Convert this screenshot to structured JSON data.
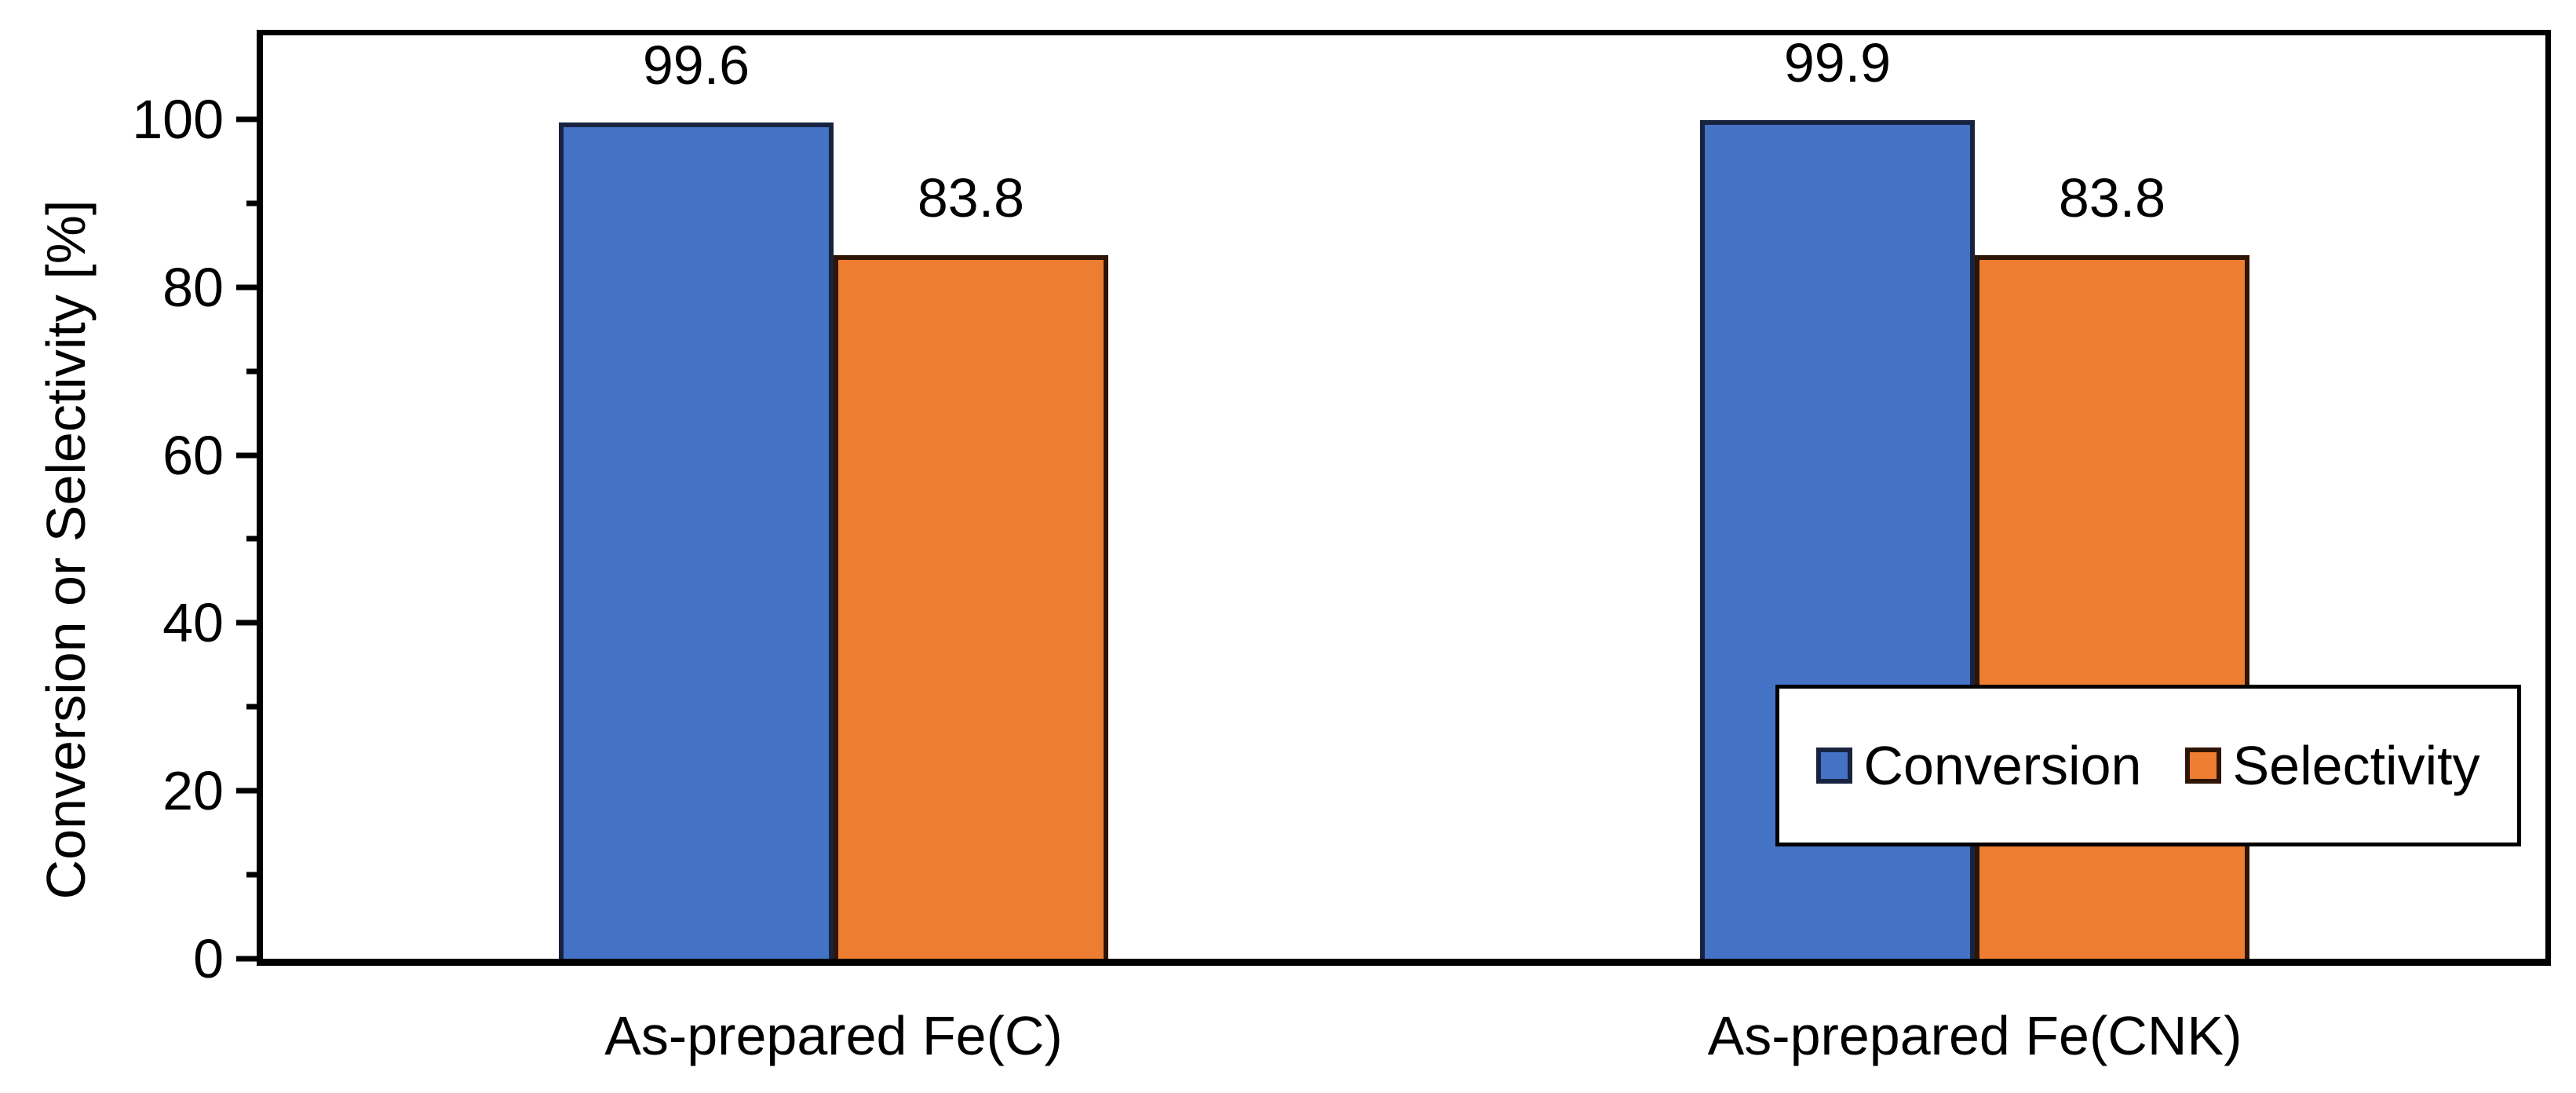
{
  "chart_data": {
    "type": "bar",
    "title": "",
    "categories": [
      "As-prepared Fe(C)",
      "As-prepared Fe(CNK)"
    ],
    "series": [
      {
        "name": "Conversion",
        "color": "#4472C4",
        "border_color": "#17233F",
        "values": [
          99.6,
          99.9
        ]
      },
      {
        "name": "Selectivity",
        "color": "#ED7D31",
        "border_color": "#2E1504",
        "values": [
          83.8,
          83.8
        ]
      }
    ],
    "data_label_decimals": 1,
    "xlabel": "",
    "ylabel": "Conversion or Selectivity [%]",
    "ylim": [
      0,
      110
    ],
    "yticks": [
      0,
      20,
      40,
      60,
      80,
      100
    ],
    "minor_yticks": [
      10,
      30,
      50,
      70,
      90
    ],
    "grid": false,
    "legend_position": "inside-right",
    "axis_color": "#000000",
    "background_color": "#FFFFFF"
  }
}
